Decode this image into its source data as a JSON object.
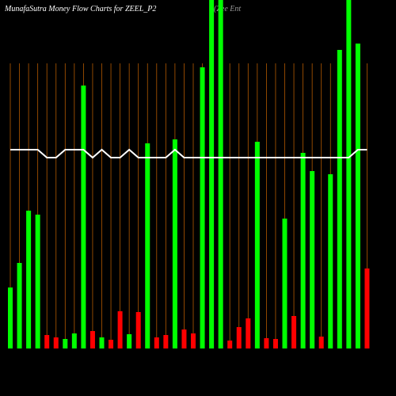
{
  "chart_data": {
    "type": "bar",
    "title": "MunafaSutra  Money Flow  Charts for ZEEL_P2",
    "subtitle": "(Zee  Ent",
    "ylim": [
      0,
      440
    ],
    "series": [
      {
        "name": "Money Flow",
        "type": "bar",
        "values": [
          77,
          108,
          174,
          169,
          17,
          14,
          12,
          19,
          332,
          22,
          14,
          11,
          47,
          18,
          46,
          259,
          14,
          17,
          264,
          24,
          19,
          355,
          440,
          440,
          10,
          27,
          38,
          261,
          13,
          12,
          164,
          41,
          247,
          224,
          15,
          220,
          377,
          440,
          385,
          101
        ],
        "colors": [
          "#00ff00",
          "#00ff00",
          "#00ff00",
          "#00ff00",
          "#ff0000",
          "#ff0000",
          "#00ff00",
          "#00ff00",
          "#00ff00",
          "#ff0000",
          "#00ff00",
          "#ff0000",
          "#ff0000",
          "#00ff00",
          "#ff0000",
          "#00ff00",
          "#ff0000",
          "#ff0000",
          "#00ff00",
          "#ff0000",
          "#ff0000",
          "#00ff00",
          "#00ff00",
          "#00ff00",
          "#ff0000",
          "#ff0000",
          "#ff0000",
          "#00ff00",
          "#ff0000",
          "#ff0000",
          "#00ff00",
          "#ff0000",
          "#00ff00",
          "#00ff00",
          "#ff0000",
          "#00ff00",
          "#00ff00",
          "#00ff00",
          "#00ff00",
          "#ff0000"
        ]
      },
      {
        "name": "Trend",
        "type": "line",
        "color": "#ffffff",
        "values": [
          251,
          251,
          251,
          251,
          241,
          241,
          251,
          251,
          251,
          241,
          251,
          241,
          241,
          251,
          241,
          241,
          241,
          241,
          251,
          241,
          241,
          241,
          241,
          241,
          241,
          241,
          241,
          241,
          241,
          241,
          241,
          241,
          241,
          241,
          241,
          241,
          241,
          241,
          251,
          251
        ]
      }
    ]
  }
}
